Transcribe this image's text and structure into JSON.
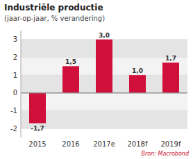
{
  "chart_data": {
    "type": "bar",
    "title": "Industriële productie",
    "subtitle": "(jaar-op-jaar, % verandering)",
    "categories": [
      "2015",
      "2016",
      "2017e",
      "2018f",
      "2019f"
    ],
    "values": [
      -1.7,
      1.5,
      3.0,
      1.0,
      1.7
    ],
    "value_labels": [
      "-1,7",
      "1,5",
      "3,0",
      "1,0",
      "1,7"
    ],
    "data_labels": true,
    "color": "#d0103a",
    "ylim": [
      -2.5,
      3.5
    ],
    "yticks": [
      -2,
      -1,
      0,
      1,
      2,
      3
    ],
    "grid": true,
    "source": "Bron: Macrobond"
  }
}
